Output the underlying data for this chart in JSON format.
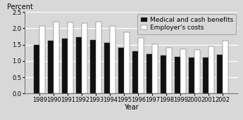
{
  "years": [
    "1989",
    "1990",
    "1991",
    "1992",
    "1993",
    "1994",
    "1995",
    "1996",
    "1997",
    "1998",
    "1999",
    "2000",
    "2001",
    "2002"
  ],
  "medical_cash": [
    1.49,
    1.61,
    1.69,
    1.72,
    1.65,
    1.55,
    1.41,
    1.29,
    1.21,
    1.16,
    1.12,
    1.1,
    1.11,
    1.2
  ],
  "employer_costs": [
    2.08,
    2.2,
    2.19,
    2.15,
    2.2,
    2.08,
    1.87,
    1.7,
    1.52,
    1.41,
    1.36,
    1.35,
    1.44,
    1.62
  ],
  "bar_color_dark": "#111111",
  "bar_color_light": "#ffffff",
  "bar_edgecolor": "#444444",
  "legend_labels": [
    "Medical and cash benefits",
    "Employer's costs"
  ],
  "ylabel": "Percent",
  "xlabel": "Year",
  "ylim": [
    0,
    2.5
  ],
  "yticks": [
    0,
    0.5,
    1.0,
    1.5,
    2.0,
    2.5
  ],
  "fig_facecolor": "#d8d8d8",
  "plot_facecolor": "#d8d8d8",
  "grid_color": "#ffffff",
  "axis_fontsize": 7,
  "tick_fontsize": 6,
  "legend_fontsize": 6.5
}
